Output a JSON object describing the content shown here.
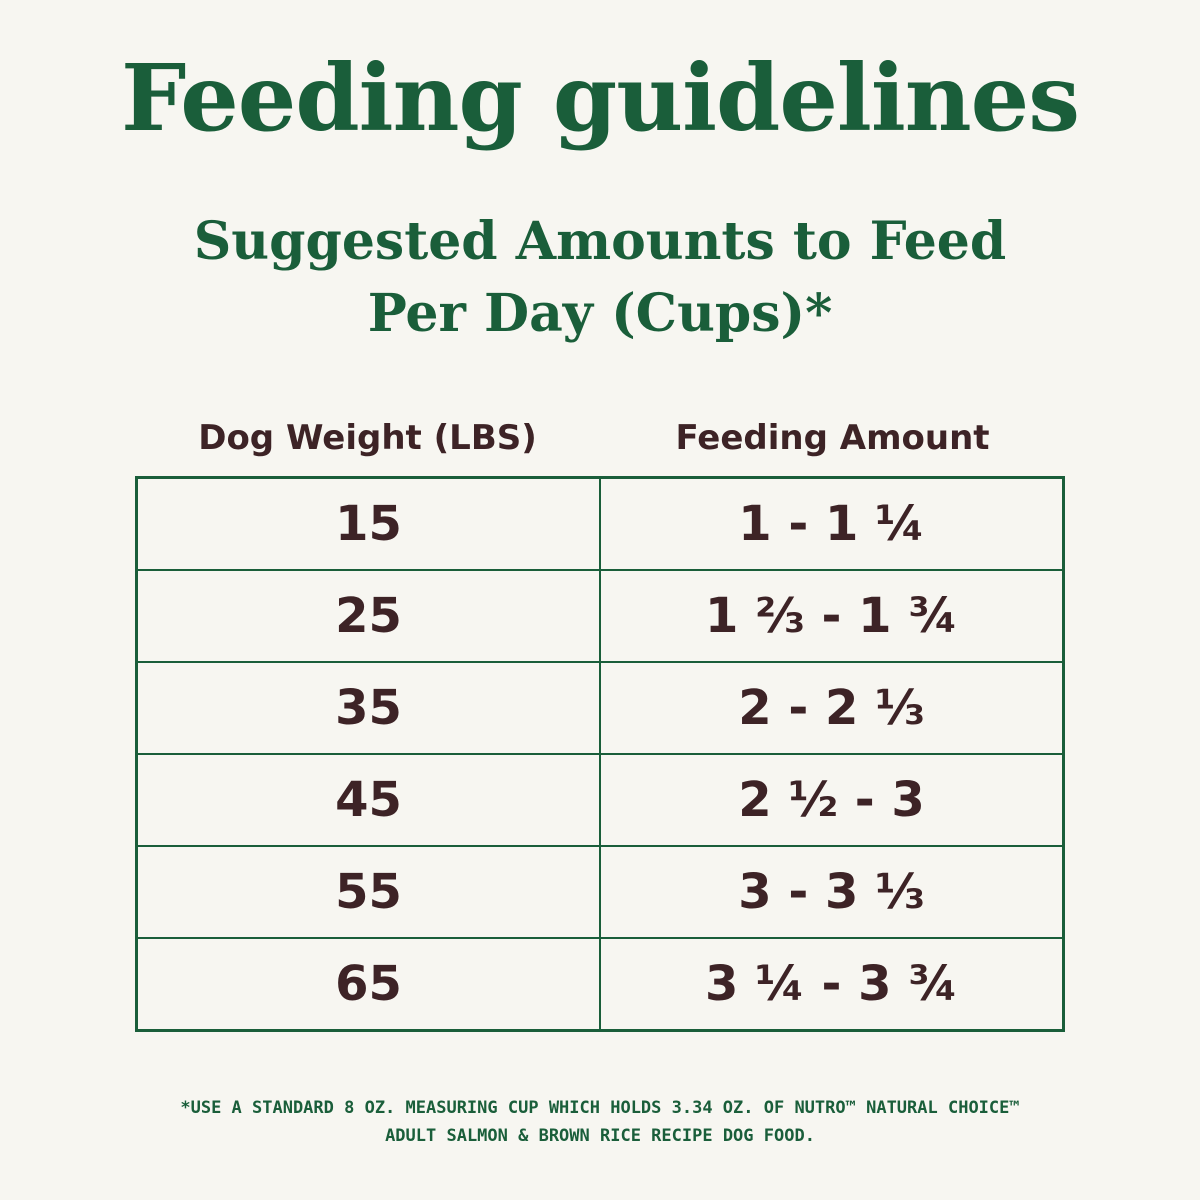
{
  "header": {
    "title": "Feeding guidelines",
    "subtitle": [
      "Suggested Amounts to Feed",
      "Per Day (Cups)*"
    ]
  },
  "table": {
    "columns": [
      "Dog Weight (LBS)",
      "Feeding Amount"
    ],
    "rows": [
      [
        "15",
        "1 - 1 ¼"
      ],
      [
        "25",
        "1 ⅔ - 1 ¾"
      ],
      [
        "35",
        "2 - 2 ⅓"
      ],
      [
        "45",
        "2 ½ - 3"
      ],
      [
        "55",
        "3 - 3 ⅓"
      ],
      [
        "65",
        "3 ¼ - 3 ¾"
      ]
    ]
  },
  "footnote": [
    "*USE A STANDARD 8 OZ. MEASURING CUP WHICH HOLDS 3.34 OZ. OF NUTRO™ NATURAL CHOICE™",
    "ADULT SALMON & BROWN RICE RECIPE DOG FOOD."
  ]
}
